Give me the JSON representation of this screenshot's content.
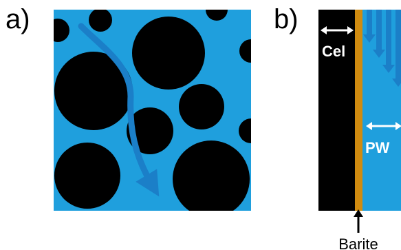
{
  "panels": {
    "a": {
      "label": "a)"
    },
    "b": {
      "label": "b)",
      "cel_label": "Cel",
      "pw_label": "PW",
      "barite_label": "Barite"
    }
  },
  "colors": {
    "water": "#1f9fdd",
    "particle": "#000000",
    "barite": "#d08b10",
    "flow_arrow": "#1b7fc8"
  }
}
